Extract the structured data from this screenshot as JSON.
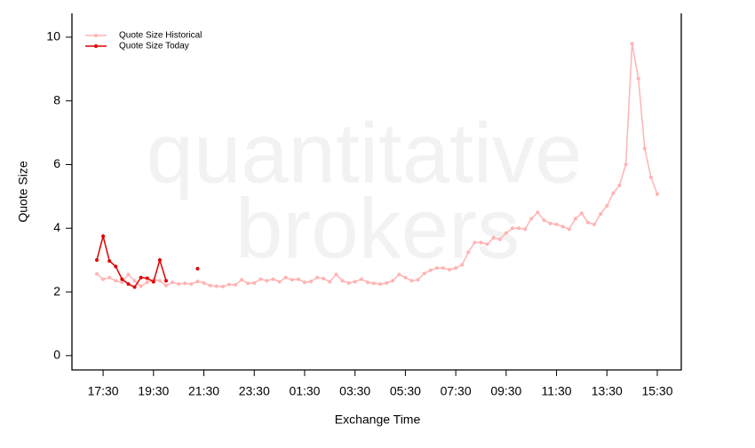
{
  "chart_data": {
    "type": "line",
    "watermark": [
      "quantitative",
      "brokers"
    ],
    "x_label": "Exchange Time",
    "y_label": "Quote Size",
    "categories": [
      null,
      "17:30",
      null,
      null,
      null,
      null,
      null,
      null,
      null,
      "19:30",
      null,
      null,
      null,
      null,
      null,
      null,
      null,
      "21:30",
      null,
      null,
      null,
      null,
      null,
      null,
      null,
      "23:30",
      null,
      null,
      null,
      null,
      null,
      null,
      null,
      "01:30",
      null,
      null,
      null,
      null,
      null,
      null,
      null,
      "03:30",
      null,
      null,
      null,
      null,
      null,
      null,
      null,
      "05:30",
      null,
      null,
      null,
      null,
      null,
      null,
      null,
      "07:30",
      null,
      null,
      null,
      null,
      null,
      null,
      null,
      "09:30",
      null,
      null,
      null,
      null,
      null,
      null,
      null,
      "11:30",
      null,
      null,
      null,
      null,
      null,
      null,
      null,
      "13:30",
      null,
      null,
      null,
      null,
      null,
      null,
      null,
      "15:30"
    ],
    "series": [
      {
        "name": "Quote Size Historical",
        "color": "#ffb3b3",
        "values": [
          2.57,
          2.4,
          2.45,
          2.35,
          2.3,
          2.55,
          2.35,
          2.18,
          2.3,
          2.38,
          2.35,
          2.2,
          2.3,
          2.25,
          2.27,
          2.25,
          2.33,
          2.28,
          2.2,
          2.18,
          2.17,
          2.23,
          2.22,
          2.38,
          2.27,
          2.28,
          2.4,
          2.35,
          2.4,
          2.32,
          2.45,
          2.38,
          2.4,
          2.3,
          2.33,
          2.45,
          2.42,
          2.32,
          2.55,
          2.35,
          2.28,
          2.32,
          2.4,
          2.3,
          2.27,
          2.25,
          2.28,
          2.35,
          2.55,
          2.45,
          2.35,
          2.38,
          2.58,
          2.68,
          2.75,
          2.75,
          2.7,
          2.75,
          2.85,
          3.25,
          3.55,
          3.55,
          3.5,
          3.7,
          3.65,
          3.85,
          4.0,
          4.0,
          3.97,
          4.3,
          4.5,
          4.25,
          4.15,
          4.12,
          4.05,
          3.97,
          4.3,
          4.47,
          4.18,
          4.12,
          4.45,
          4.7,
          5.1,
          5.35,
          6.0,
          9.8,
          8.7,
          6.5,
          5.6,
          5.07
        ]
      },
      {
        "name": "Quote Size Today",
        "color": "#e00000",
        "values": [
          3.0,
          3.75,
          2.97,
          2.8,
          2.4,
          2.25,
          2.15,
          2.45,
          2.43,
          2.32,
          3.0,
          2.35,
          null,
          null,
          null,
          null,
          2.73,
          null,
          null,
          null,
          null,
          null,
          null,
          null,
          null,
          null,
          null,
          null,
          null,
          null,
          null,
          null,
          null,
          null,
          null,
          null,
          null,
          null,
          null,
          null,
          null,
          null,
          null,
          null,
          null,
          null,
          null,
          null,
          null,
          null,
          null,
          null,
          null,
          null,
          null,
          null,
          null,
          null,
          null,
          null,
          null,
          null,
          null,
          null,
          null,
          null,
          null,
          null,
          null,
          null,
          null,
          null,
          null,
          null,
          null,
          null,
          null,
          null,
          null,
          null,
          null,
          null,
          null,
          null,
          null,
          null,
          null,
          null,
          null,
          null
        ]
      }
    ],
    "ylim": [
      -0.45,
      10.75
    ],
    "yticks": [
      0,
      2,
      4,
      6,
      8,
      10
    ],
    "legend": "top-left"
  }
}
